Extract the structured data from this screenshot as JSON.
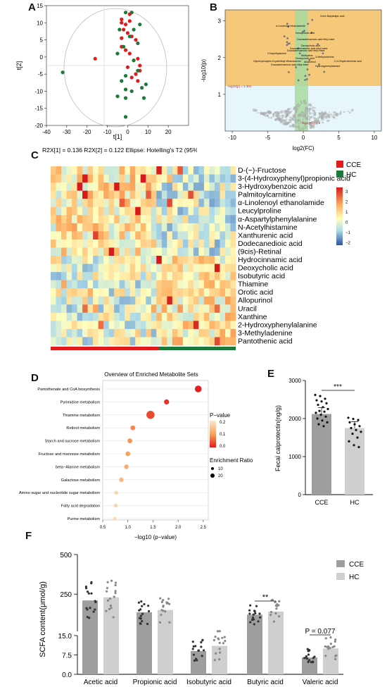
{
  "figure": {
    "panel_labels": [
      "A",
      "B",
      "C",
      "D",
      "E",
      "F"
    ]
  },
  "colors": {
    "cce_red": "#e31a1c",
    "hc_green": "#1b7a3a",
    "up_band": "#f6c97a",
    "low_band": "#e6f6fb",
    "fc_band": "#a8dba0",
    "bar_dark": "#9e9e9e",
    "bar_light": "#cfcfcf"
  },
  "chart_data": [
    {
      "panel": "A",
      "type": "scatter",
      "xlabel": "t[1]",
      "ylabel": "t[2]",
      "xlim": [
        -40,
        30
      ],
      "ylim": [
        -20,
        15
      ],
      "xticks": [
        "-40",
        "-30",
        "-20",
        "-10",
        "0",
        "10",
        "20"
      ],
      "yticks": [
        "15",
        "10",
        "5",
        "0",
        "-5",
        "-10",
        "-15",
        "-20"
      ],
      "caption": "R2X[1] = 0.136 R2X[2] = 0.122 Ellipse: Hotelling's T2 (95%)",
      "series": [
        {
          "color": "red",
          "points": [
            [
              1,
              12.5
            ],
            [
              -3,
              11
            ],
            [
              -3,
              10
            ],
            [
              -1,
              9.5
            ],
            [
              1,
              10.5
            ],
            [
              -2,
              8
            ],
            [
              0,
              7
            ],
            [
              2,
              6
            ],
            [
              4,
              5
            ],
            [
              -3,
              5.5
            ],
            [
              -16,
              -0.5
            ],
            [
              -3,
              3
            ],
            [
              -1,
              2
            ],
            [
              1,
              1
            ],
            [
              3,
              -1
            ],
            [
              5,
              -0.5
            ],
            [
              6,
              -2.5
            ],
            [
              6,
              -4
            ],
            [
              4,
              -5
            ],
            [
              2,
              -6
            ],
            [
              5,
              -7
            ],
            [
              0,
              -3
            ]
          ]
        },
        {
          "color": "green",
          "points": [
            [
              -32,
              -4.5
            ],
            [
              -1,
              13
            ],
            [
              2,
              13
            ],
            [
              -4,
              8
            ],
            [
              6,
              9.5
            ],
            [
              3,
              8
            ],
            [
              1,
              6
            ],
            [
              5,
              4
            ],
            [
              -2,
              3
            ],
            [
              -5,
              1
            ],
            [
              3,
              -1
            ],
            [
              -1,
              -5.5
            ],
            [
              5,
              -4
            ],
            [
              -3,
              -7
            ],
            [
              7,
              -9
            ],
            [
              -1,
              -9.5
            ],
            [
              2,
              -10
            ],
            [
              -5,
              -11.5
            ],
            [
              8,
              -12
            ],
            [
              -1,
              -12
            ],
            [
              -1,
              -17.5
            ],
            [
              9,
              -8
            ]
          ]
        }
      ]
    },
    {
      "panel": "B",
      "type": "scatter",
      "xlabel": "log2(FC)",
      "ylabel": "-log10(p)",
      "xlim": [
        -11,
        11
      ],
      "ylim": [
        0,
        3.3
      ],
      "xticks": [
        "-10",
        "-5",
        "0",
        "5",
        "10"
      ],
      "yticks": [
        "1",
        "2",
        "3"
      ],
      "threshold_labels": [
        "-log10(p) = 1.301",
        "log2(FC) = 1"
      ],
      "annotations": [
        "3-tert-Butyladipic acid",
        "α-Linolenoyl ethanolamide",
        "Deoxycholic acid",
        "Docosahexaenoic acid ethyl ester",
        "Deoxycholic acid",
        "Docosahexaenoic acid ethyl ester",
        "Docosahexaenoic acid ethyl ester",
        "2-Naphthylamine",
        "Methylene",
        "Deoxycholic acid",
        "3-Methyladenine",
        "Glycerophospho-N-palmitoyl ethanolamine",
        "Allopurinol",
        "Docosahexaenoic acid ethyl ester",
        "2,4-Dihydroxinolinic acid",
        "Hydroxyphenylalanine"
      ]
    },
    {
      "panel": "C",
      "type": "heatmap",
      "rows": [
        "D-(−)-Fructose",
        "3-(4-Hydroxyphenyl)propionic acid",
        "3-Hydroxybenzoic acid",
        "Palmitoylcarnitine",
        "α-Linolenoyl ethanolamide",
        "Leucylproline",
        "α-Aspartylphenylalanine",
        "N-Acetylhistamine",
        "Xanthurenic acid",
        "Dodecanedioic acid",
        "(9cis)-Retinal",
        "Hydrocinnamic acid",
        "Deoxycholic acid",
        "Isobutyric acid",
        "Thiamine",
        "Orotic acid",
        "Allopurinol",
        "Uracil",
        "Xanthine",
        "2-Hydroxyphenylalanine",
        "3-Methyladenine",
        "Pantothenic acid"
      ],
      "groups": [
        {
          "name": "CCE",
          "count": 20
        },
        {
          "name": "HC",
          "count": 15
        }
      ],
      "colorbar_ticks": [
        "3",
        "2",
        "1",
        "0",
        "−1",
        "−2"
      ]
    },
    {
      "panel": "D",
      "type": "scatter",
      "title": "Overview of Enriched Metabolite Sets",
      "xlabel": "−log10 (p−value)",
      "xticks": [
        "0.5",
        "1.0",
        "1.5",
        "2.0",
        "2.5"
      ],
      "xlim": [
        0.5,
        2.6
      ],
      "legend_p_title": "P−value",
      "legend_p_ticks": [
        "0.2",
        "0.1",
        "0.0"
      ],
      "legend_size_title": "Enrichment Ratio",
      "legend_size_ticks": [
        "10",
        "20"
      ],
      "categories": [
        "Pantothenate and CoA biosynthesis",
        "Pyrimidine metabolism",
        "Thiamine metabolism",
        "Retinol metabolism",
        "Starch and sucrose metabolism",
        "Fructose and mannose metabolism",
        "beta−Alanine metabolism",
        "Galactose metabolism",
        "Amino sugar and nucleotide sugar metabolism",
        "Fatty acid degradation",
        "Purine metabolism"
      ],
      "values": [
        2.4,
        1.77,
        1.45,
        1.1,
        1.04,
        1.0,
        0.97,
        0.87,
        0.77,
        0.76,
        0.74
      ],
      "sizes": [
        16,
        11,
        20,
        10,
        10,
        10,
        9,
        9,
        7,
        7,
        6
      ],
      "pvalues": [
        0.004,
        0.017,
        0.035,
        0.08,
        0.09,
        0.1,
        0.11,
        0.13,
        0.17,
        0.17,
        0.18
      ]
    },
    {
      "panel": "E",
      "type": "bar",
      "ylabel": "Fecal calprotectin(ng/g)",
      "categories": [
        "CCE",
        "HC"
      ],
      "values": [
        2120,
        1750
      ],
      "ylim": [
        0,
        3000
      ],
      "yticks": [
        "0",
        "1000",
        "2000",
        "3000"
      ],
      "significance": "***",
      "points": [
        [
          2620,
          2590,
          2520,
          2480,
          2450,
          2400,
          2360,
          2300,
          2250,
          2200,
          2180,
          2150,
          2100,
          2050,
          2000,
          1950,
          1900,
          1850,
          1800
        ],
        [
          2020,
          1990,
          1960,
          1900,
          1850,
          1800,
          1750,
          1700,
          1650,
          1600,
          1500,
          1400,
          1300,
          1250
        ]
      ]
    },
    {
      "panel": "F",
      "type": "bar",
      "ylabel": "SCFA content(μmol/g)",
      "categories": [
        "Acetic acid",
        "Propionic acid",
        "Isobutyric acid",
        "Butyric acid",
        "Valeric acid"
      ],
      "series": [
        {
          "name": "CCE",
          "values": [
            210,
            135,
            9,
            120,
            6.5
          ]
        },
        {
          "name": "HC",
          "values": [
            230,
            150,
            11,
            140,
            10
          ]
        }
      ],
      "yticks": [
        "0.0",
        "7.5",
        "15.0",
        "250",
        "500"
      ],
      "annotations": [
        "**",
        "P = 0.077"
      ]
    }
  ]
}
